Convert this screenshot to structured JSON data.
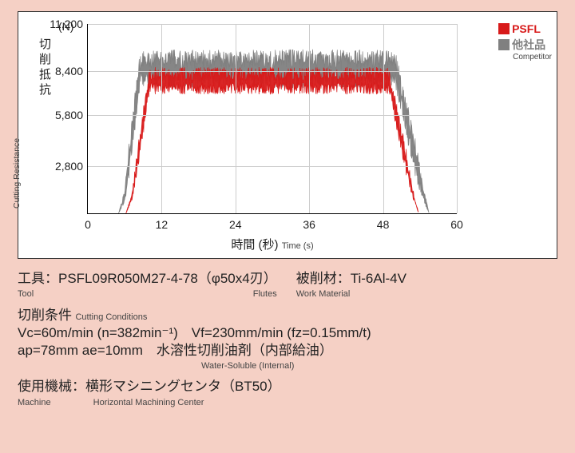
{
  "chart": {
    "type": "line-noisy",
    "y_unit": "(N)",
    "y_label_jp": "切削抵抗",
    "y_label_en": "Cutting Resistance",
    "x_label_jp": "時間 (秒)",
    "x_label_en": "Time (s)",
    "y_ticks": [
      2800,
      5800,
      8400,
      11200
    ],
    "y_tick_labels": [
      "2,800",
      "5,800",
      "8,400",
      "11,200"
    ],
    "x_ticks": [
      0,
      12,
      24,
      36,
      48,
      60
    ],
    "xlim": [
      0,
      60
    ],
    "ylim": [
      0,
      11200
    ],
    "grid_color": "#cccccc",
    "axis_color": "#000000",
    "background_color": "#ffffff",
    "legend": {
      "items": [
        {
          "label": "PSFL",
          "color": "#d81a1a",
          "sub": ""
        },
        {
          "label": "他社品",
          "color": "#808080",
          "sub": "Competitor"
        }
      ],
      "position": "top-right"
    },
    "series": [
      {
        "name": "competitor",
        "color": "#808080",
        "noise_band": 2400,
        "keypoints": [
          {
            "t": 5.0,
            "v": 0
          },
          {
            "t": 6.0,
            "v": 1000
          },
          {
            "t": 8.5,
            "v": 8500
          },
          {
            "t": 50.0,
            "v": 8500
          },
          {
            "t": 54.5,
            "v": 1200
          },
          {
            "t": 55.5,
            "v": 0
          }
        ],
        "x_range": [
          5.0,
          55.5
        ]
      },
      {
        "name": "psfl",
        "color": "#d81a1a",
        "noise_band": 1700,
        "keypoints": [
          {
            "t": 6.2,
            "v": 0
          },
          {
            "t": 7.2,
            "v": 1000
          },
          {
            "t": 10.0,
            "v": 7800
          },
          {
            "t": 49.0,
            "v": 7800
          },
          {
            "t": 52.8,
            "v": 1200
          },
          {
            "t": 53.8,
            "v": 0
          }
        ],
        "x_range": [
          6.2,
          53.8
        ]
      }
    ]
  },
  "info": {
    "tool": {
      "label_jp": "工具：",
      "label_en": "Tool",
      "value": "PSFL09R050M27-4-78（φ50x4刃）",
      "value_en": "Flutes"
    },
    "work": {
      "label_jp": "被削材：",
      "label_en": "Work Material",
      "value": "Ti-6Al-4V"
    },
    "cond": {
      "label_jp": "切削条件",
      "label_en": "Cutting Conditions",
      "line1": "Vc=60m/min (n=382min⁻¹)　Vf=230mm/min (fz=0.15mm/t)",
      "line2": "ap=78mm  ae=10mm　水溶性切削油剤（内部給油）",
      "line2_en": "Water-Soluble (Internal)"
    },
    "machine": {
      "label_jp": "使用機械：",
      "label_en": "Machine",
      "value": "横形マシニングセンタ（BT50）",
      "value_en": "Horizontal Machining Center"
    }
  }
}
